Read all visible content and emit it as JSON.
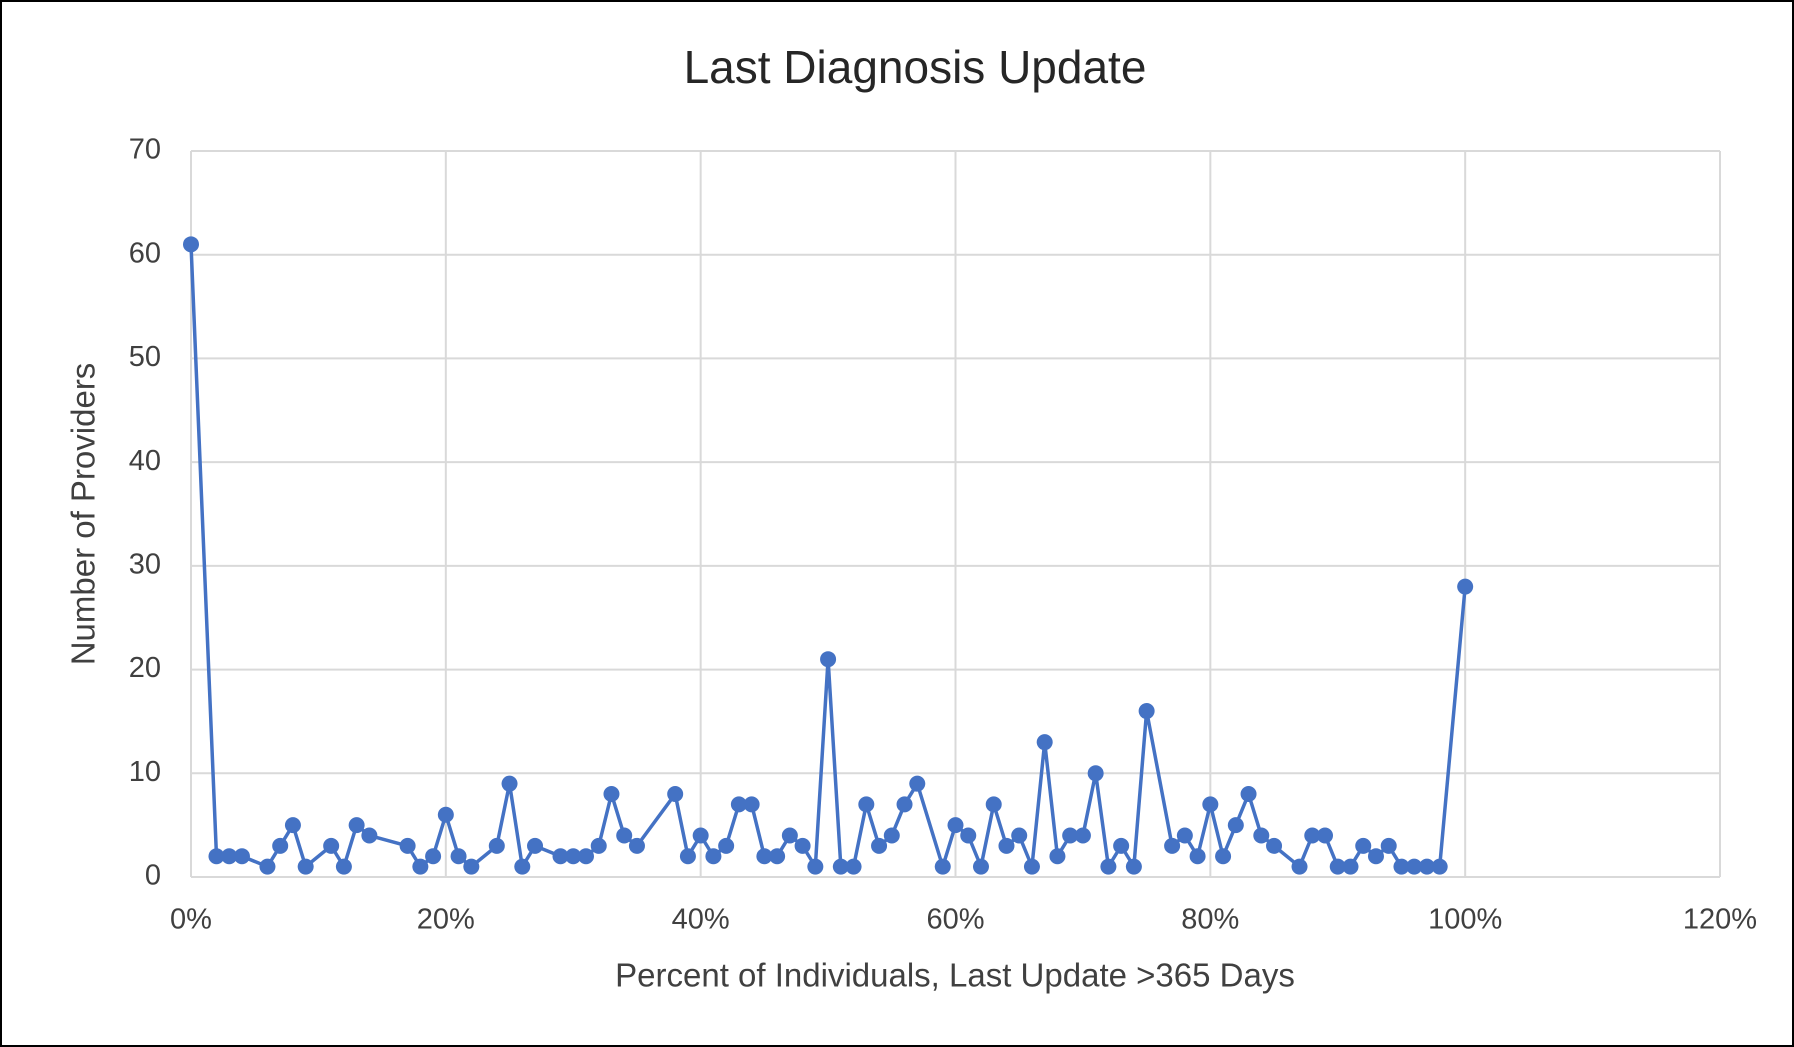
{
  "chart_data": {
    "type": "line",
    "title": "Last Diagnosis Update",
    "x_label": "Percent of Individuals, Last Update >365 Days",
    "y_label": "Number of Providers",
    "x": [
      0,
      2,
      3,
      4,
      6,
      7,
      8,
      9,
      11,
      12,
      13,
      14,
      17,
      18,
      19,
      20,
      21,
      22,
      24,
      25,
      26,
      27,
      29,
      30,
      31,
      32,
      33,
      34,
      35,
      38,
      39,
      40,
      41,
      42,
      43,
      44,
      45,
      46,
      47,
      48,
      49,
      50,
      51,
      52,
      53,
      54,
      55,
      56,
      57,
      59,
      60,
      61,
      62,
      63,
      64,
      65,
      66,
      67,
      68,
      69,
      70,
      71,
      72,
      73,
      74,
      75,
      77,
      78,
      79,
      80,
      81,
      82,
      83,
      84,
      85,
      87,
      88,
      89,
      90,
      91,
      92,
      93,
      94,
      95,
      96,
      97,
      98,
      100
    ],
    "series": [
      {
        "name": "Number of Providers",
        "color": "#4472c4",
        "values": [
          61,
          2,
          2,
          2,
          1,
          3,
          5,
          1,
          3,
          1,
          5,
          4,
          3,
          1,
          2,
          6,
          2,
          1,
          3,
          9,
          1,
          3,
          2,
          2,
          2,
          3,
          8,
          4,
          3,
          8,
          2,
          4,
          2,
          3,
          7,
          7,
          2,
          2,
          4,
          3,
          1,
          21,
          1,
          1,
          7,
          3,
          4,
          7,
          9,
          1,
          5,
          4,
          1,
          7,
          3,
          4,
          1,
          13,
          2,
          4,
          4,
          10,
          1,
          3,
          1,
          16,
          3,
          4,
          2,
          7,
          2,
          5,
          8,
          4,
          3,
          1,
          4,
          4,
          1,
          1,
          3,
          2,
          3,
          1,
          1,
          1,
          1,
          28
        ]
      }
    ],
    "xlim": [
      0,
      120
    ],
    "xticks": [
      {
        "value": 0,
        "label": "0%"
      },
      {
        "value": 20,
        "label": "20%"
      },
      {
        "value": 40,
        "label": "40%"
      },
      {
        "value": 60,
        "label": "60%"
      },
      {
        "value": 80,
        "label": "80%"
      },
      {
        "value": 100,
        "label": "100%"
      },
      {
        "value": 120,
        "label": "120%"
      }
    ],
    "ylim": [
      0,
      70
    ],
    "yticks": [
      0,
      10,
      20,
      30,
      40,
      50,
      60,
      70
    ],
    "grid": true
  }
}
